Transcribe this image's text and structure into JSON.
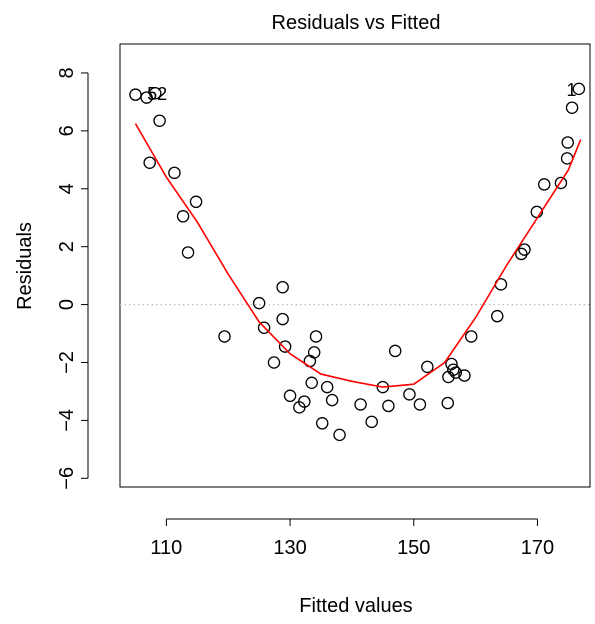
{
  "chart_data": {
    "type": "scatter",
    "title": "Residuals vs Fitted",
    "xlabel": "Fitted values",
    "ylabel": "Residuals",
    "xlim": [
      102.5,
      178.5
    ],
    "ylim": [
      -6.3,
      9.0
    ],
    "xticks": [
      110,
      130,
      150,
      170
    ],
    "xtick_labels": [
      "110",
      "130",
      "150",
      "170"
    ],
    "yticks": [
      -6,
      -4,
      -2,
      0,
      2,
      4,
      6,
      8
    ],
    "ytick_labels": [
      "−6",
      "−4",
      "−2",
      "0",
      "2",
      "4",
      "6",
      "8"
    ],
    "grid": false,
    "legend": "none",
    "reference_line": {
      "y": 0,
      "style": "dotted",
      "color": "#bdbdbd"
    },
    "smooth_color": "#ff0000",
    "point_color": "#000000",
    "points": [
      {
        "x": 105.0,
        "y": 7.25
      },
      {
        "x": 106.8,
        "y": 7.15
      },
      {
        "x": 108.2,
        "y": 7.3
      },
      {
        "x": 108.9,
        "y": 6.35
      },
      {
        "x": 107.3,
        "y": 4.9
      },
      {
        "x": 111.3,
        "y": 4.55
      },
      {
        "x": 112.7,
        "y": 3.05
      },
      {
        "x": 113.5,
        "y": 1.8
      },
      {
        "x": 114.8,
        "y": 3.55
      },
      {
        "x": 119.4,
        "y": -1.1
      },
      {
        "x": 125.0,
        "y": 0.05
      },
      {
        "x": 125.8,
        "y": -0.8
      },
      {
        "x": 127.4,
        "y": -2.0
      },
      {
        "x": 128.8,
        "y": 0.6
      },
      {
        "x": 128.8,
        "y": -0.5
      },
      {
        "x": 129.2,
        "y": -1.45
      },
      {
        "x": 130.0,
        "y": -3.15
      },
      {
        "x": 131.5,
        "y": -3.55
      },
      {
        "x": 132.3,
        "y": -3.35
      },
      {
        "x": 133.2,
        "y": -1.95
      },
      {
        "x": 133.5,
        "y": -2.7
      },
      {
        "x": 133.9,
        "y": -1.65
      },
      {
        "x": 134.2,
        "y": -1.1
      },
      {
        "x": 135.2,
        "y": -4.1
      },
      {
        "x": 136.0,
        "y": -2.85
      },
      {
        "x": 136.8,
        "y": -3.3
      },
      {
        "x": 138.0,
        "y": -4.5
      },
      {
        "x": 141.4,
        "y": -3.45
      },
      {
        "x": 143.2,
        "y": -4.05
      },
      {
        "x": 145.0,
        "y": -2.85
      },
      {
        "x": 145.9,
        "y": -3.5
      },
      {
        "x": 147.0,
        "y": -1.6
      },
      {
        "x": 149.3,
        "y": -3.1
      },
      {
        "x": 151.0,
        "y": -3.45
      },
      {
        "x": 152.2,
        "y": -2.15
      },
      {
        "x": 155.5,
        "y": -3.4
      },
      {
        "x": 155.6,
        "y": -2.5
      },
      {
        "x": 156.1,
        "y": -2.05
      },
      {
        "x": 156.4,
        "y": -2.25
      },
      {
        "x": 156.8,
        "y": -2.35
      },
      {
        "x": 158.2,
        "y": -2.45
      },
      {
        "x": 159.3,
        "y": -1.1
      },
      {
        "x": 163.5,
        "y": -0.4
      },
      {
        "x": 164.1,
        "y": 0.7
      },
      {
        "x": 167.4,
        "y": 1.75
      },
      {
        "x": 167.9,
        "y": 1.9
      },
      {
        "x": 169.9,
        "y": 3.2
      },
      {
        "x": 171.1,
        "y": 4.15
      },
      {
        "x": 173.8,
        "y": 4.2
      },
      {
        "x": 174.8,
        "y": 5.05
      },
      {
        "x": 174.9,
        "y": 5.6
      },
      {
        "x": 175.6,
        "y": 6.8
      },
      {
        "x": 176.7,
        "y": 7.45
      }
    ],
    "smooth_line": {
      "x": [
        105,
        110,
        115,
        120,
        125,
        130,
        135,
        140,
        145,
        150,
        155,
        160,
        165,
        170,
        175,
        177
      ],
      "y": [
        6.25,
        4.4,
        2.85,
        1.05,
        -0.6,
        -1.7,
        -2.4,
        -2.65,
        -2.85,
        -2.75,
        -2.0,
        -0.45,
        1.35,
        3.0,
        4.65,
        5.7
      ]
    },
    "annotations": [
      {
        "text": "52",
        "x": 108.5,
        "y": 7.3
      },
      {
        "text": "1",
        "x": 175.5,
        "y": 7.45
      }
    ]
  }
}
